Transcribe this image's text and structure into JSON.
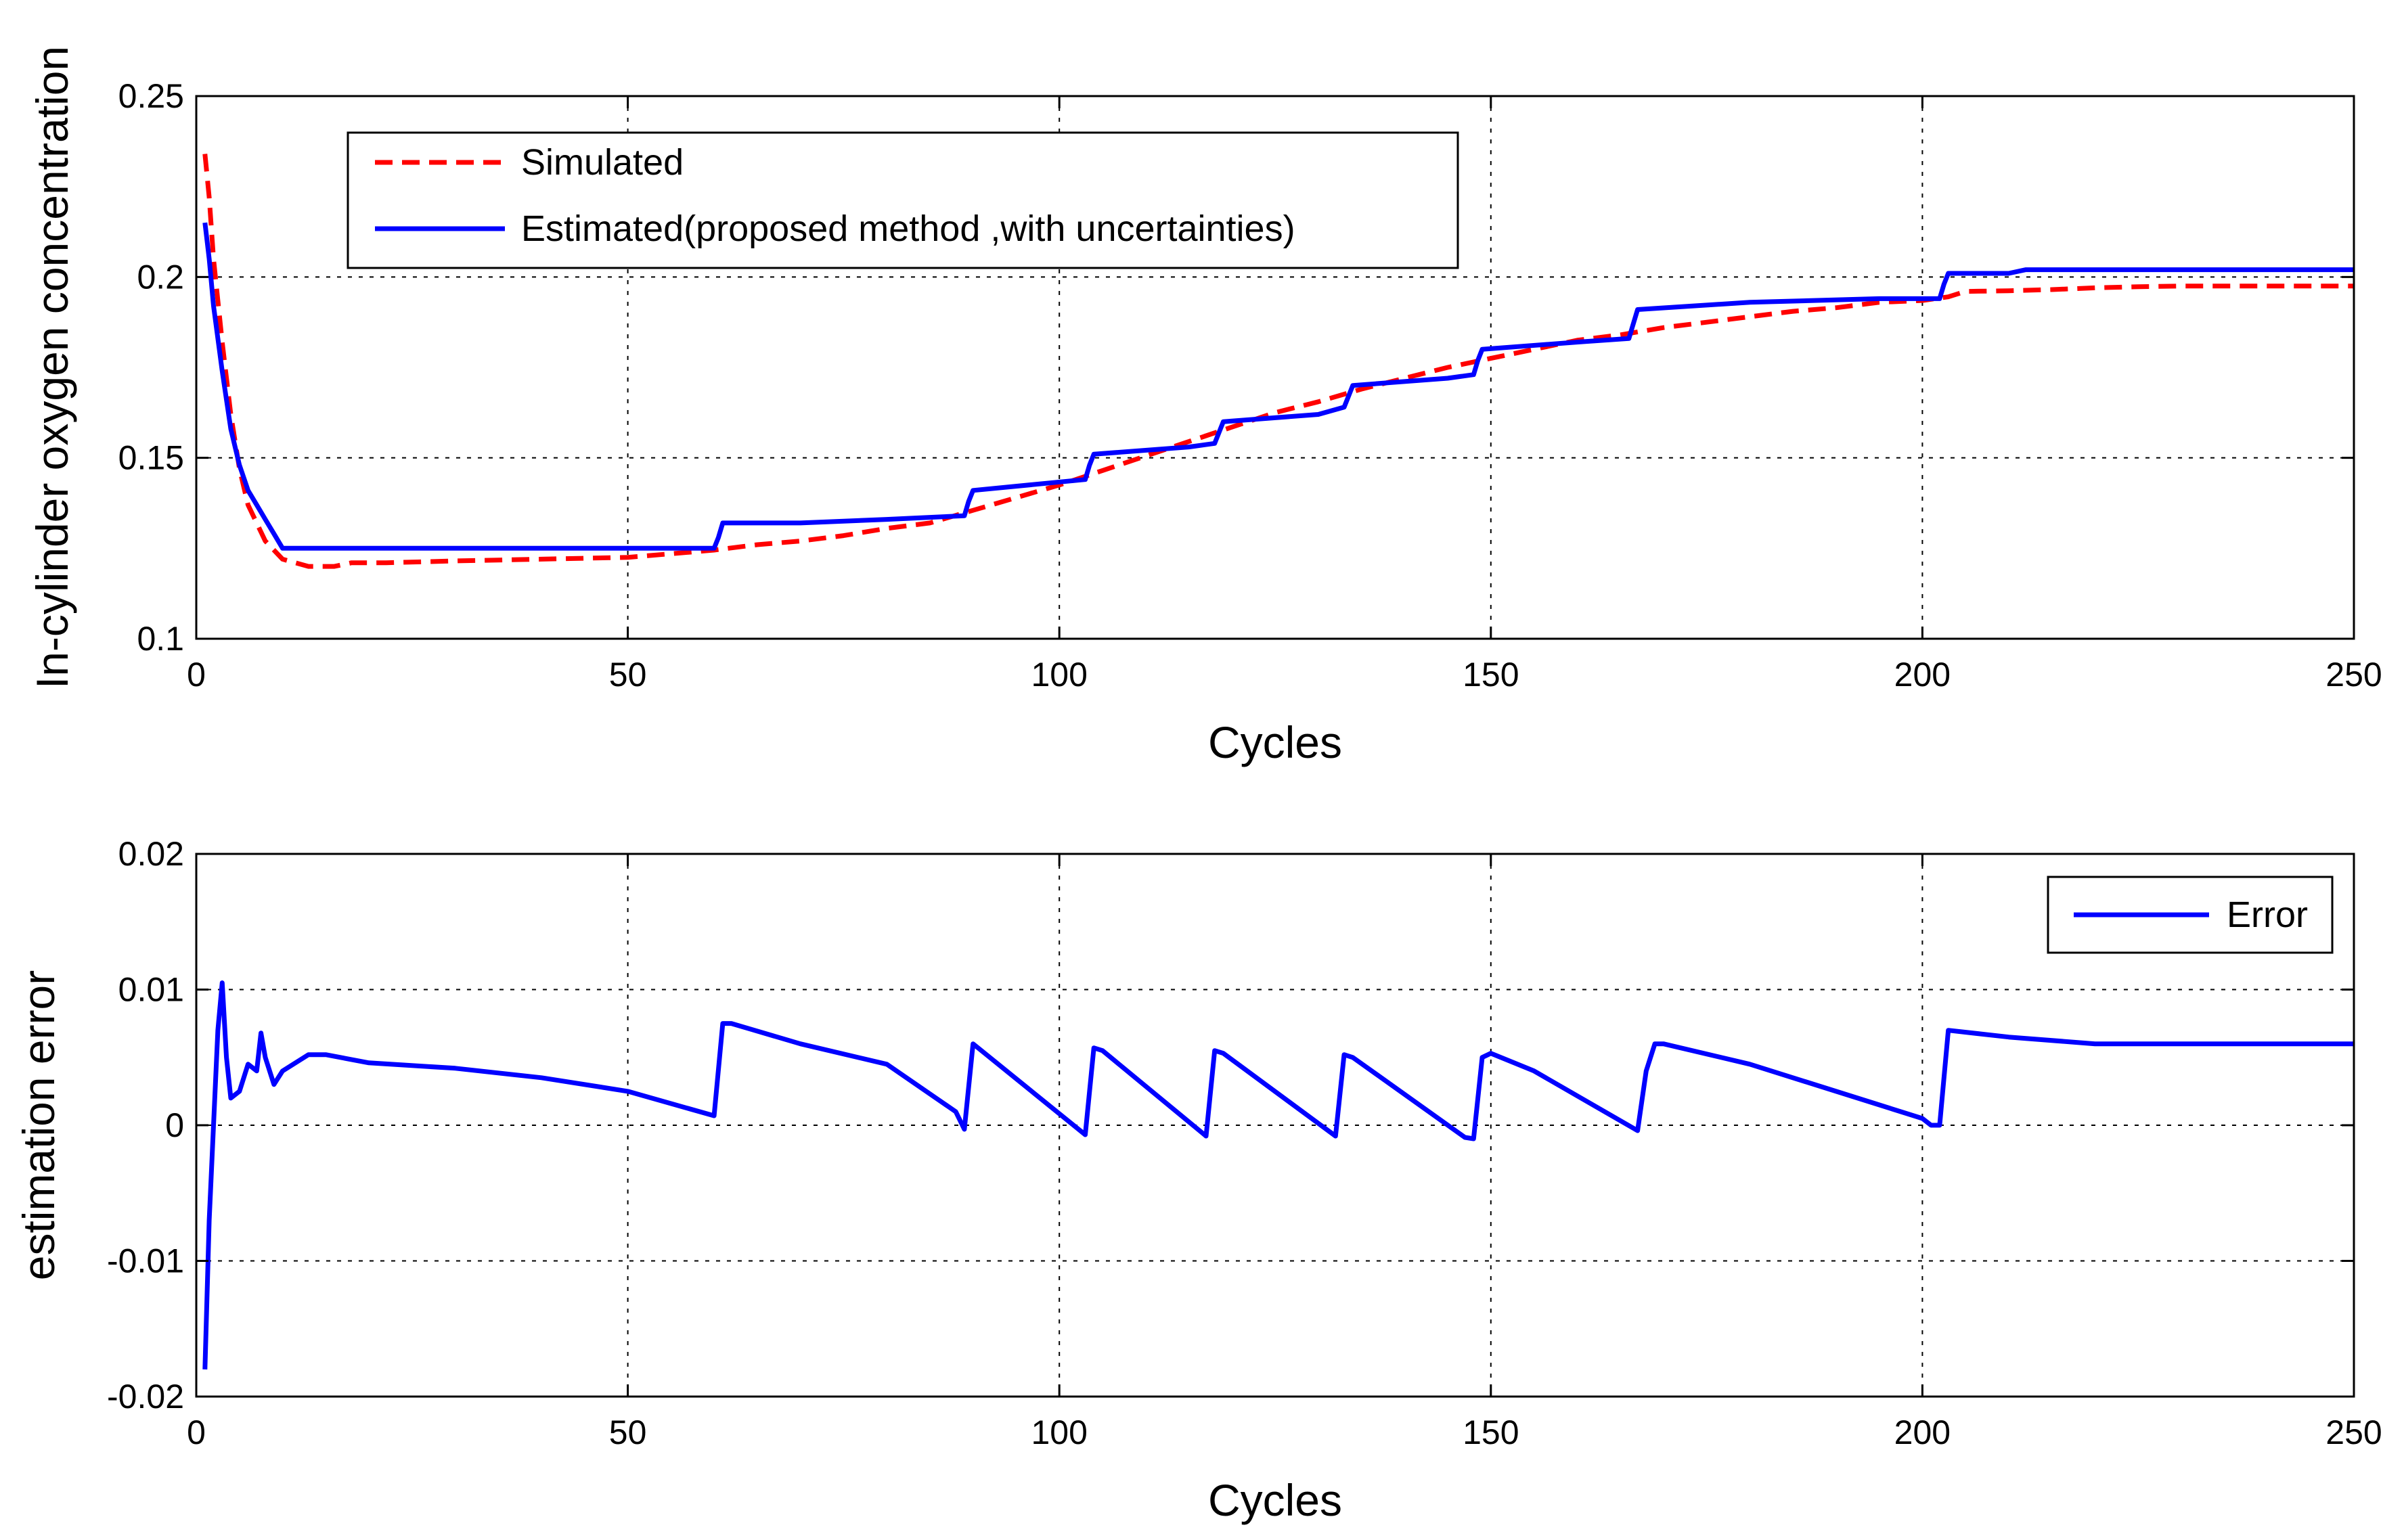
{
  "chart_data": [
    {
      "type": "line",
      "id": "top",
      "title": "",
      "xlabel": "Cycles",
      "ylabel": "In-cylinder oxygen concentration",
      "xlim": [
        0,
        250
      ],
      "ylim": [
        0.1,
        0.25
      ],
      "xticks": [
        0,
        50,
        100,
        150,
        200,
        250
      ],
      "xtick_labels": [
        "0",
        "50",
        "100",
        "150",
        "200",
        "250"
      ],
      "yticks": [
        0.1,
        0.15,
        0.2,
        0.25
      ],
      "ytick_labels": [
        "0.1",
        "0.15",
        "0.2",
        "0.25"
      ],
      "grid": true,
      "legend_position": "top-left",
      "series": [
        {
          "name": "Simulated",
          "color": "#ff0000",
          "style": "dashed",
          "x": [
            1,
            1.5,
            2,
            3,
            4,
            5,
            6,
            8,
            10,
            13,
            16,
            18,
            22,
            30,
            40,
            50,
            55,
            60,
            65,
            70,
            75,
            80,
            85,
            90,
            95,
            100,
            105,
            110,
            115,
            120,
            125,
            130,
            135,
            140,
            145,
            150,
            155,
            160,
            165,
            170,
            175,
            180,
            185,
            190,
            195,
            200,
            203,
            205,
            210,
            215,
            220,
            225,
            230,
            240,
            250
          ],
          "y": [
            0.234,
            0.222,
            0.205,
            0.182,
            0.162,
            0.147,
            0.137,
            0.127,
            0.122,
            0.12,
            0.12,
            0.121,
            0.121,
            0.1215,
            0.122,
            0.1225,
            0.1235,
            0.1245,
            0.126,
            0.127,
            0.1285,
            0.1305,
            0.132,
            0.1355,
            0.139,
            0.1425,
            0.1465,
            0.1505,
            0.1545,
            0.1585,
            0.1625,
            0.1655,
            0.169,
            0.172,
            0.175,
            0.1775,
            0.18,
            0.1825,
            0.184,
            0.186,
            0.1875,
            0.189,
            0.1905,
            0.1915,
            0.193,
            0.1935,
            0.1945,
            0.196,
            0.1962,
            0.1965,
            0.197,
            0.1973,
            0.1975,
            0.1975,
            0.1975
          ]
        },
        {
          "name": "Estimated(proposed method ,with uncertainties)",
          "color": "#0000ff",
          "style": "solid",
          "x": [
            1,
            1.5,
            2,
            3,
            4,
            5,
            6,
            7,
            8,
            9,
            10,
            20,
            40,
            60,
            60.5,
            61,
            70,
            80,
            89,
            89.5,
            90,
            103,
            103.5,
            104,
            115,
            118,
            118.5,
            119,
            130,
            133,
            133.5,
            134,
            145,
            148,
            148.5,
            149,
            160,
            166,
            166.5,
            167,
            180,
            195,
            200,
            202,
            202.5,
            203,
            210,
            212,
            230,
            250
          ],
          "y": [
            0.215,
            0.205,
            0.192,
            0.174,
            0.158,
            0.148,
            0.141,
            0.137,
            0.133,
            0.129,
            0.125,
            0.125,
            0.125,
            0.125,
            0.128,
            0.132,
            0.132,
            0.133,
            0.134,
            0.138,
            0.141,
            0.144,
            0.148,
            0.151,
            0.153,
            0.154,
            0.157,
            0.16,
            0.162,
            0.164,
            0.167,
            0.17,
            0.172,
            0.173,
            0.177,
            0.18,
            0.182,
            0.183,
            0.187,
            0.191,
            0.193,
            0.194,
            0.194,
            0.194,
            0.198,
            0.201,
            0.201,
            0.202,
            0.202,
            0.202
          ]
        }
      ]
    },
    {
      "type": "line",
      "id": "bottom",
      "title": "",
      "xlabel": "Cycles",
      "ylabel": "estimation error",
      "xlim": [
        0,
        250
      ],
      "ylim": [
        -0.02,
        0.02
      ],
      "xticks": [
        0,
        50,
        100,
        150,
        200,
        250
      ],
      "xtick_labels": [
        "0",
        "50",
        "100",
        "150",
        "200",
        "250"
      ],
      "yticks": [
        -0.02,
        -0.01,
        0,
        0.01,
        0.02
      ],
      "ytick_labels": [
        "-0.02",
        "-0.01",
        "0",
        "0.01",
        "0.02"
      ],
      "grid": true,
      "legend_position": "top-right",
      "series": [
        {
          "name": "Error",
          "color": "#0000ff",
          "style": "solid",
          "x": [
            1,
            1.5,
            2,
            2.5,
            3,
            3.5,
            4,
            5,
            6,
            7,
            7.5,
            8,
            9,
            10,
            13,
            15,
            20,
            30,
            40,
            50,
            60,
            61,
            62,
            70,
            80,
            88,
            89,
            90,
            103,
            104,
            105,
            117,
            118,
            119,
            132,
            133,
            134,
            147,
            148,
            149,
            150,
            155,
            167,
            168,
            169,
            170,
            180,
            190,
            200,
            201,
            202,
            203,
            210,
            220,
            230,
            240,
            250
          ],
          "y": [
            -0.018,
            -0.007,
            0.0,
            0.007,
            0.0105,
            0.005,
            0.002,
            0.0025,
            0.0045,
            0.004,
            0.0068,
            0.005,
            0.003,
            0.004,
            0.0052,
            0.0052,
            0.0046,
            0.0042,
            0.0035,
            0.0025,
            0.0007,
            0.0075,
            0.0075,
            0.006,
            0.0045,
            0.001,
            -0.0003,
            0.006,
            -0.0007,
            0.0057,
            0.0055,
            -0.0008,
            0.0055,
            0.0053,
            -0.0008,
            0.0052,
            0.005,
            -0.0009,
            -0.001,
            0.005,
            0.0053,
            0.004,
            -0.0004,
            0.004,
            0.006,
            0.006,
            0.0045,
            0.0025,
            0.0005,
            0.0,
            0.0,
            0.007,
            0.0065,
            0.006,
            0.006,
            0.006,
            0.006
          ]
        }
      ]
    }
  ]
}
